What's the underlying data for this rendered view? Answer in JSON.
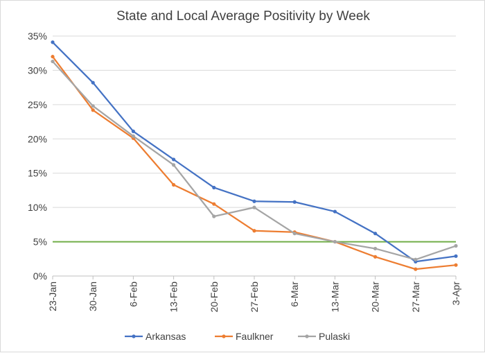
{
  "chart_data": {
    "type": "line",
    "title": "State and Local Average Positivity by Week",
    "xlabel": "",
    "ylabel": "",
    "categories": [
      "23-Jan",
      "30-Jan",
      "6-Feb",
      "13-Feb",
      "20-Feb",
      "27-Feb",
      "6-Mar",
      "13-Mar",
      "20-Mar",
      "27-Mar",
      "3-Apr"
    ],
    "ylim": [
      0,
      35
    ],
    "y_tick_labels": [
      "0%",
      "5%",
      "10%",
      "15%",
      "20%",
      "25%",
      "30%",
      "35%"
    ],
    "y_tick_values": [
      0,
      5,
      10,
      15,
      20,
      25,
      30,
      35
    ],
    "grid": true,
    "legend_position": "bottom",
    "series": [
      {
        "name": "Arkansas",
        "color": "#4472c4",
        "values": [
          34.1,
          28.2,
          21.1,
          17.0,
          12.9,
          10.9,
          10.8,
          9.4,
          6.2,
          2.1,
          2.9
        ]
      },
      {
        "name": "Faulkner",
        "color": "#ed7d31",
        "values": [
          32.0,
          24.2,
          20.1,
          13.3,
          10.5,
          6.6,
          6.4,
          5.0,
          2.8,
          1.0,
          1.6
        ]
      },
      {
        "name": "Pulaski",
        "color": "#a5a5a5",
        "values": [
          31.3,
          24.8,
          20.4,
          16.2,
          8.7,
          10.0,
          6.2,
          5.0,
          4.0,
          2.4,
          4.4
        ]
      }
    ],
    "reference_line": {
      "value": 5,
      "color": "#70ad47"
    }
  }
}
